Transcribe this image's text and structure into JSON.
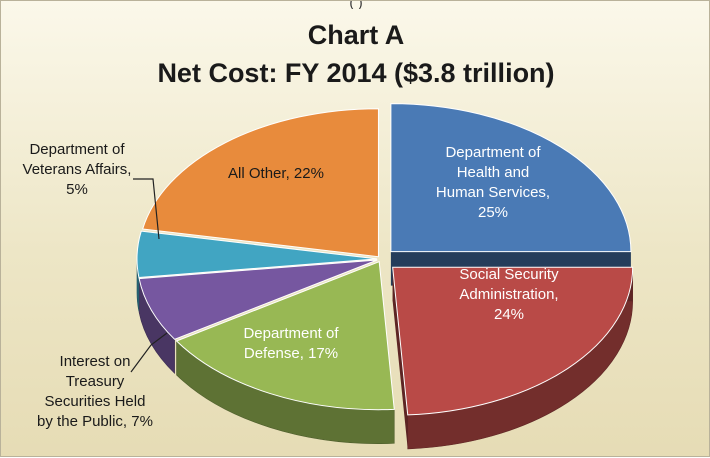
{
  "chart_data": {
    "type": "pie",
    "title_line1": "Chart A",
    "title_line2": "Net Cost: FY 2014 ($3.8 trillion)",
    "slices": [
      {
        "label_lines": [
          "Department of",
          "Health and",
          "Human Services,",
          "25%"
        ],
        "value": 25,
        "color": "#4a7ab5"
      },
      {
        "label_lines": [
          "Social Security",
          "Administration,",
          "24%"
        ],
        "value": 24,
        "color": "#b94a47"
      },
      {
        "label_lines": [
          "Department of",
          "Defense, 17%"
        ],
        "value": 17,
        "color": "#98b854"
      },
      {
        "label_lines": [
          "Interest on",
          "Treasury",
          "Securities Held",
          "by the Public, 7%"
        ],
        "value": 7,
        "color": "#7657a0"
      },
      {
        "label_lines": [
          "Department of",
          "Veterans Affairs,",
          "5%"
        ],
        "value": 5,
        "color": "#41a5c2"
      },
      {
        "label_lines": [
          "All Other, 22%"
        ],
        "value": 22,
        "color": "#e88b3c"
      }
    ],
    "legend": "none (labels on and beside slices)"
  }
}
